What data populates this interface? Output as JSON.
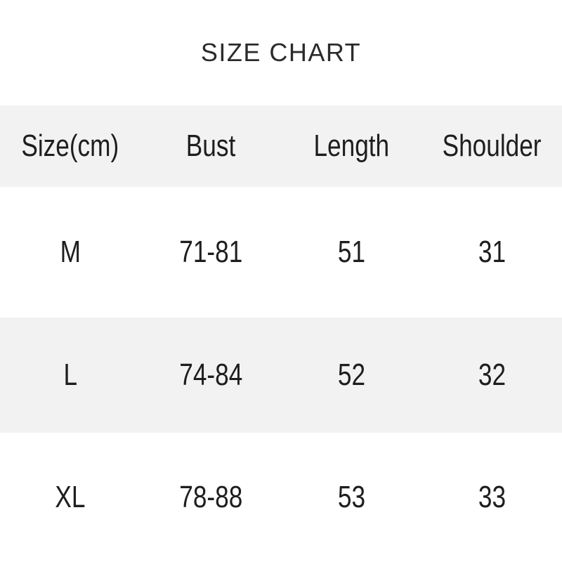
{
  "title": "SIZE CHART",
  "chart_data": {
    "type": "table",
    "title": "SIZE CHART",
    "columns": [
      "Size(cm)",
      "Bust",
      "Length",
      "Shoulder"
    ],
    "rows": [
      [
        "M",
        "71-81",
        "51",
        "31"
      ],
      [
        "L",
        "74-84",
        "52",
        "32"
      ],
      [
        "XL",
        "78-88",
        "53",
        "33"
      ]
    ],
    "layout": {
      "striped": true,
      "stripe_pattern": [
        "header-gray",
        "white",
        "gray",
        "white"
      ],
      "grid": false,
      "column_alignment": "center"
    }
  },
  "colors": {
    "page_bg": "#ffffff",
    "row_alt_bg": "#f2f2f2",
    "text": "#1e1e1e",
    "title_text": "#2b2b2b"
  }
}
